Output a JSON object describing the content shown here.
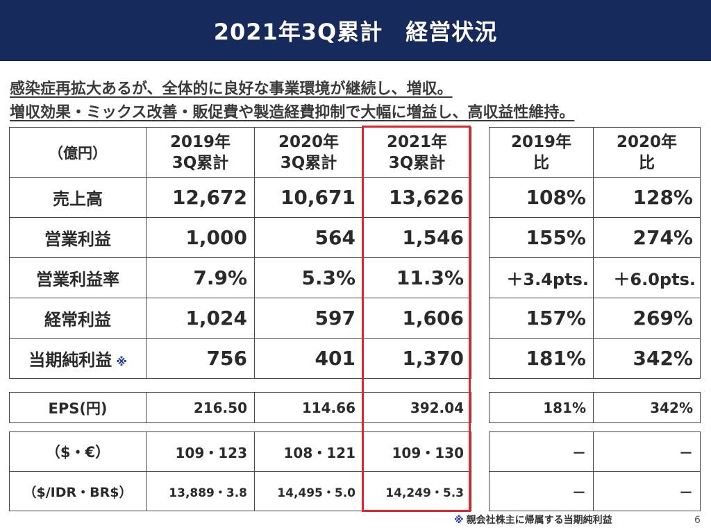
{
  "title": "2021年3Q累計　経営状況",
  "headlines": [
    "感染症再拡大あるが、全体的に良好な事業環境が継続し、増収。",
    "増収効果・ミックス改善・販促費や製造経費抑制で大幅に増益し、高収益性維持。"
  ],
  "header": {
    "unit": "（億円）",
    "col_2019": [
      "2019年",
      "3Q累計"
    ],
    "col_2020": [
      "2020年",
      "3Q累計"
    ],
    "col_2021": [
      "2021年",
      "3Q累計"
    ],
    "vs_2019": [
      "2019年",
      "比"
    ],
    "vs_2020": [
      "2020年",
      "比"
    ]
  },
  "rows": [
    {
      "label": "売上高",
      "v2019": "12,672",
      "v2020": "10,671",
      "v2021": "13,626",
      "vs2019": "108%",
      "vs2020": "128%"
    },
    {
      "label": "営業利益",
      "v2019": "1,000",
      "v2020": "564",
      "v2021": "1,546",
      "vs2019": "155%",
      "vs2020": "274%"
    },
    {
      "label": "営業利益率",
      "v2019": "7.9%",
      "v2020": "5.3%",
      "v2021": "11.3%",
      "vs2019": "＋3.4pts.",
      "vs2020": "＋6.0pts."
    },
    {
      "label": "経常利益",
      "v2019": "1,024",
      "v2020": "597",
      "v2021": "1,606",
      "vs2019": "157%",
      "vs2020": "269%"
    },
    {
      "label": "当期純利益",
      "mark": "※",
      "v2019": "756",
      "v2020": "401",
      "v2021": "1,370",
      "vs2019": "181%",
      "vs2020": "342%"
    }
  ],
  "eps": {
    "label": "EPS(円)",
    "v2019": "216.50",
    "v2020": "114.66",
    "v2021": "392.04",
    "vs2019": "181%",
    "vs2020": "342%"
  },
  "fx": [
    {
      "label": "（$・€）",
      "v2019": "109・123",
      "v2020": "108・121",
      "v2021": "109・130",
      "vs2019": "－",
      "vs2020": "－"
    },
    {
      "label": "（$/IDR・BR$）",
      "v2019": "13,889・3.8",
      "v2020": "14,495・5.0",
      "v2021": "14,249・5.3",
      "vs2019": "－",
      "vs2020": "－"
    }
  ],
  "footnote": {
    "mark": "※",
    "text": "親会社株主に帰属する当期純利益"
  },
  "page_number": "6",
  "colors": {
    "title_bg": "#172a5c",
    "highlight": "#e3262d",
    "note_mark": "#1d38a8"
  }
}
